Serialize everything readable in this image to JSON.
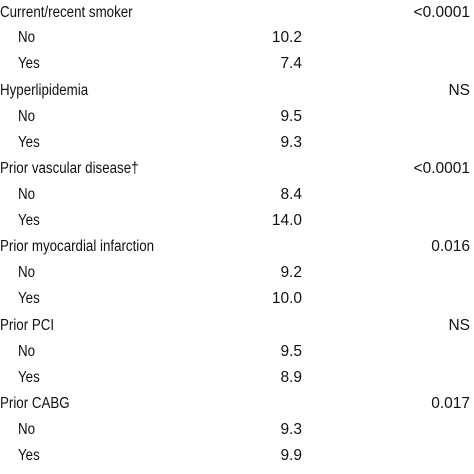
{
  "rows": [
    {
      "label": "Current/recent smoker",
      "value": "",
      "p": "<0.0001",
      "sub": false
    },
    {
      "label": "No",
      "value": "10.2",
      "p": "",
      "sub": true
    },
    {
      "label": "Yes",
      "value": "7.4",
      "p": "",
      "sub": true
    },
    {
      "label": "Hyperlipidemia",
      "value": "",
      "p": "NS",
      "sub": false
    },
    {
      "label": "No",
      "value": "9.5",
      "p": "",
      "sub": true
    },
    {
      "label": "Yes",
      "value": "9.3",
      "p": "",
      "sub": true
    },
    {
      "label": "Prior vascular disease†",
      "value": "",
      "p": "<0.0001",
      "sub": false
    },
    {
      "label": "No",
      "value": "8.4",
      "p": "",
      "sub": true
    },
    {
      "label": "Yes",
      "value": "14.0",
      "p": "",
      "sub": true
    },
    {
      "label": "Prior myocardial infarction",
      "value": "",
      "p": "0.016",
      "sub": false
    },
    {
      "label": "No",
      "value": "9.2",
      "p": "",
      "sub": true
    },
    {
      "label": "Yes",
      "value": "10.0",
      "p": "",
      "sub": true
    },
    {
      "label": "Prior PCI",
      "value": "",
      "p": "NS",
      "sub": false
    },
    {
      "label": "No",
      "value": "9.5",
      "p": "",
      "sub": true
    },
    {
      "label": "Yes",
      "value": "8.9",
      "p": "",
      "sub": true
    },
    {
      "label": "Prior CABG",
      "value": "",
      "p": "0.017",
      "sub": false
    },
    {
      "label": "No",
      "value": "9.3",
      "p": "",
      "sub": true
    },
    {
      "label": "Yes",
      "value": "9.9",
      "p": "",
      "sub": true
    }
  ]
}
